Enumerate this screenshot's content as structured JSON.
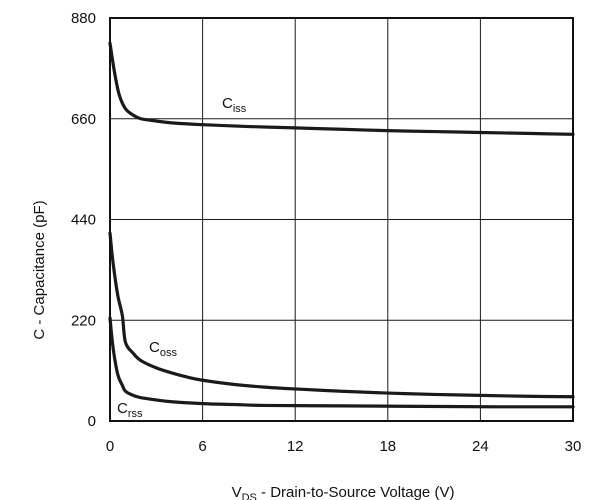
{
  "chart_data": {
    "type": "line",
    "xlabel": {
      "main": "V",
      "sub": "DS",
      "rest": " - Drain-to-Source Voltage (V)"
    },
    "ylabel": "C - Capacitance (pF)",
    "xlim": [
      0,
      30
    ],
    "ylim": [
      0,
      880
    ],
    "x_ticks": [
      0,
      6,
      12,
      18,
      24,
      30
    ],
    "y_ticks": [
      0,
      220,
      440,
      660,
      880
    ],
    "grid": true,
    "series": [
      {
        "name": {
          "main": "C",
          "sub": "iss"
        },
        "x": [
          0,
          0.3,
          0.6,
          1.0,
          1.5,
          2,
          3,
          4,
          6,
          9,
          12,
          15,
          18,
          21,
          24,
          27,
          30
        ],
        "y": [
          825,
          760,
          712,
          682,
          668,
          660,
          655,
          651,
          647,
          643,
          640,
          637,
          634,
          632,
          630,
          628,
          626
        ]
      },
      {
        "name": {
          "main": "C",
          "sub": "oss"
        },
        "x": [
          0,
          0.2,
          0.5,
          0.8,
          1.0,
          1.5,
          2,
          3,
          4,
          5,
          6,
          8,
          10,
          12,
          15,
          18,
          21,
          24,
          27,
          30
        ],
        "y": [
          410,
          345,
          275,
          230,
          172,
          148,
          132,
          116,
          105,
          96,
          89,
          80,
          74,
          70,
          65,
          61,
          58,
          56,
          54,
          53
        ]
      },
      {
        "name": {
          "main": "C",
          "sub": "rss"
        },
        "x": [
          0,
          0.2,
          0.5,
          0.8,
          1.0,
          1.5,
          2,
          3,
          4,
          6,
          8,
          10,
          15,
          20,
          25,
          30
        ],
        "y": [
          225,
          160,
          102,
          78,
          65,
          56,
          51,
          46,
          42,
          38,
          36,
          34,
          33,
          32,
          31,
          31
        ]
      }
    ]
  }
}
